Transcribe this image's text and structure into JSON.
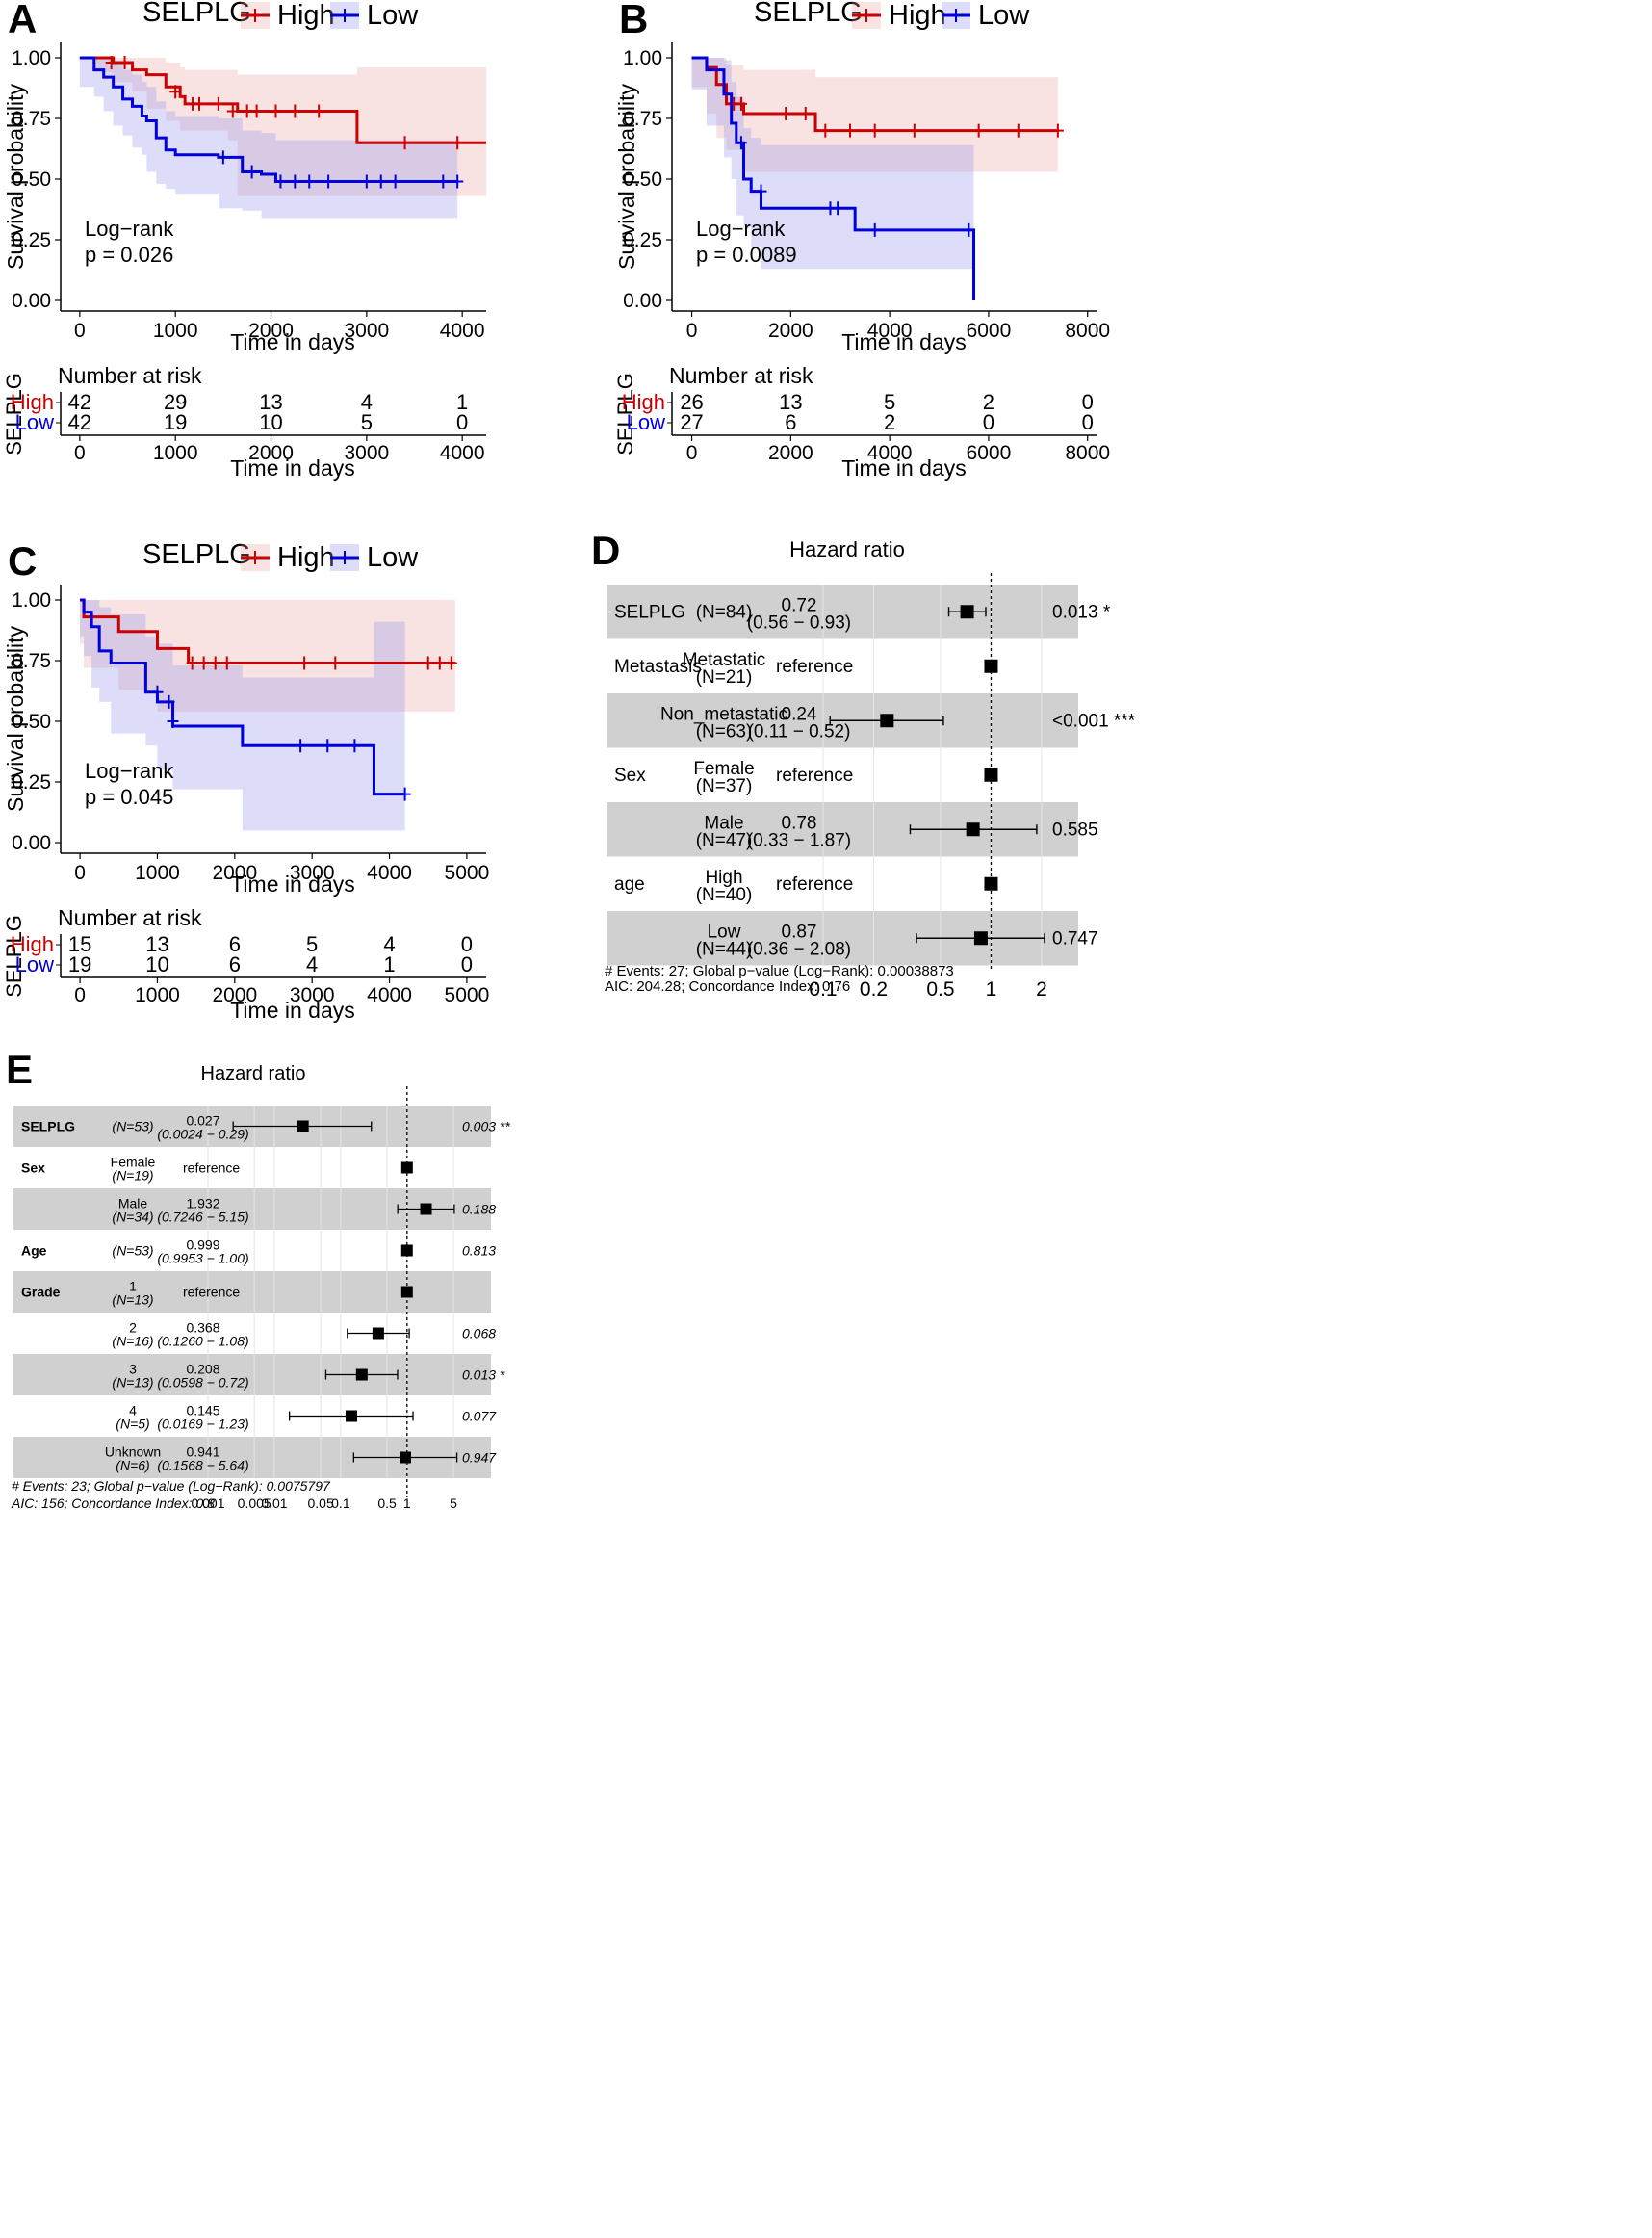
{
  "chart_data": [
    {
      "panel": "A",
      "type": "line",
      "legend_title": "SELPLG",
      "legend": [
        {
          "name": "High",
          "color": "#cc0000"
        },
        {
          "name": "Low",
          "color": "#0000dd"
        }
      ],
      "ylabel": "Survival probability",
      "xlabel": "Time in days",
      "xlim": [
        -200,
        4250
      ],
      "ylim": [
        0,
        1.0
      ],
      "xticks": [
        0,
        1000,
        2000,
        3000,
        4000
      ],
      "yticks": [
        "0.00",
        "0.25",
        "0.50",
        "0.75",
        "1.00"
      ],
      "annotation": [
        "Log−rank",
        "p = 0.026"
      ],
      "series": [
        {
          "name": "High",
          "x": [
            0,
            150,
            350,
            550,
            700,
            900,
            1050,
            1100,
            1550,
            1650,
            2900,
            4250
          ],
          "y": [
            1.0,
            1.0,
            0.98,
            0.95,
            0.93,
            0.88,
            0.84,
            0.81,
            0.81,
            0.78,
            0.65,
            0.65
          ],
          "lower": [
            1.0,
            1.0,
            0.94,
            0.9,
            0.86,
            0.79,
            0.74,
            0.7,
            0.7,
            0.66,
            0.43,
            0.43
          ],
          "upper": [
            1.0,
            1.0,
            1.0,
            1.0,
            1.0,
            0.98,
            0.96,
            0.95,
            0.95,
            0.93,
            0.96,
            0.96
          ],
          "censor": [
            [
              330,
              0.98
            ],
            [
              470,
              0.98
            ],
            [
              1000,
              0.86
            ],
            [
              1180,
              0.81
            ],
            [
              1250,
              0.81
            ],
            [
              1450,
              0.81
            ],
            [
              1600,
              0.78
            ],
            [
              1750,
              0.78
            ],
            [
              1850,
              0.78
            ],
            [
              2050,
              0.78
            ],
            [
              2250,
              0.78
            ],
            [
              2500,
              0.78
            ],
            [
              3400,
              0.65
            ],
            [
              3950,
              0.65
            ]
          ]
        },
        {
          "name": "Low",
          "x": [
            0,
            150,
            250,
            350,
            450,
            550,
            650,
            700,
            800,
            900,
            1000,
            1450,
            1700,
            1900,
            2050,
            3950
          ],
          "y": [
            1.0,
            0.95,
            0.92,
            0.88,
            0.83,
            0.8,
            0.76,
            0.74,
            0.67,
            0.62,
            0.6,
            0.59,
            0.53,
            0.52,
            0.49,
            0.49
          ],
          "lower": [
            1.0,
            0.88,
            0.84,
            0.78,
            0.72,
            0.68,
            0.63,
            0.6,
            0.53,
            0.48,
            0.46,
            0.44,
            0.38,
            0.37,
            0.34,
            0.34
          ],
          "upper": [
            1.0,
            1.0,
            1.0,
            0.98,
            0.95,
            0.93,
            0.9,
            0.88,
            0.82,
            0.78,
            0.76,
            0.75,
            0.7,
            0.69,
            0.66,
            0.66
          ],
          "censor": [
            [
              1500,
              0.59
            ],
            [
              1800,
              0.53
            ],
            [
              2100,
              0.49
            ],
            [
              2250,
              0.49
            ],
            [
              2400,
              0.49
            ],
            [
              2600,
              0.49
            ],
            [
              3000,
              0.49
            ],
            [
              3150,
              0.49
            ],
            [
              3300,
              0.49
            ],
            [
              3800,
              0.49
            ],
            [
              3950,
              0.49
            ]
          ]
        }
      ],
      "risk_table": {
        "title": "Number at risk",
        "ylabel": "SELPLG",
        "rows": [
          {
            "name": "High",
            "values": [
              42,
              29,
              13,
              4,
              1
            ]
          },
          {
            "name": "Low",
            "values": [
              42,
              19,
              10,
              5,
              0
            ]
          }
        ]
      }
    },
    {
      "panel": "B",
      "type": "line",
      "legend_title": "SELPLG",
      "legend": [
        {
          "name": "High",
          "color": "#cc0000"
        },
        {
          "name": "Low",
          "color": "#0000dd"
        }
      ],
      "ylabel": "Survival probability",
      "xlabel": "Time in days",
      "xlim": [
        -400,
        8200
      ],
      "ylim": [
        0,
        1.0
      ],
      "xticks": [
        0,
        2000,
        4000,
        6000,
        8000
      ],
      "yticks": [
        "0.00",
        "0.25",
        "0.50",
        "0.75",
        "1.00"
      ],
      "annotation": [
        "Log−rank",
        "p = 0.0089"
      ],
      "series": [
        {
          "name": "High",
          "x": [
            0,
            300,
            500,
            700,
            1050,
            2500,
            7400
          ],
          "y": [
            1.0,
            0.96,
            0.89,
            0.81,
            0.77,
            0.7,
            0.7
          ],
          "lower": [
            1.0,
            0.88,
            0.77,
            0.67,
            0.62,
            0.53,
            0.53
          ],
          "upper": [
            1.0,
            1.0,
            1.0,
            0.97,
            0.95,
            0.92,
            0.92
          ],
          "censor": [
            [
              850,
              0.81
            ],
            [
              1000,
              0.81
            ],
            [
              1900,
              0.77
            ],
            [
              2300,
              0.77
            ],
            [
              2700,
              0.7
            ],
            [
              3200,
              0.7
            ],
            [
              3700,
              0.7
            ],
            [
              4500,
              0.7
            ],
            [
              5800,
              0.7
            ],
            [
              6600,
              0.7
            ],
            [
              7400,
              0.7
            ]
          ]
        },
        {
          "name": "Low",
          "x": [
            0,
            300,
            650,
            800,
            900,
            1050,
            1200,
            1400,
            3300,
            5700,
            5700
          ],
          "y": [
            1.0,
            0.95,
            0.85,
            0.73,
            0.65,
            0.5,
            0.45,
            0.38,
            0.29,
            0.29,
            0.0
          ],
          "lower": [
            1.0,
            0.87,
            0.72,
            0.59,
            0.5,
            0.35,
            0.3,
            0.22,
            0.13,
            0.13,
            0.13
          ],
          "upper": [
            1.0,
            1.0,
            0.99,
            0.9,
            0.84,
            0.71,
            0.67,
            0.64,
            0.64,
            0.64,
            0.64
          ],
          "censor": [
            [
              1000,
              0.65
            ],
            [
              1400,
              0.45
            ],
            [
              2800,
              0.38
            ],
            [
              2950,
              0.38
            ],
            [
              3700,
              0.29
            ],
            [
              5600,
              0.29
            ]
          ]
        }
      ],
      "risk_table": {
        "title": "Number at risk",
        "ylabel": "SELPLG",
        "rows": [
          {
            "name": "High",
            "values": [
              26,
              13,
              5,
              2,
              0
            ]
          },
          {
            "name": "Low",
            "values": [
              27,
              6,
              2,
              0,
              0
            ]
          }
        ]
      }
    },
    {
      "panel": "C",
      "type": "line",
      "legend_title": "SELPLG",
      "legend": [
        {
          "name": "High",
          "color": "#cc0000"
        },
        {
          "name": "Low",
          "color": "#0000dd"
        }
      ],
      "ylabel": "Survival probability",
      "xlabel": "Time in days",
      "xlim": [
        -250,
        5250
      ],
      "ylim": [
        0,
        1.0
      ],
      "xticks": [
        0,
        1000,
        2000,
        3000,
        4000,
        5000
      ],
      "yticks": [
        "0.00",
        "0.25",
        "0.50",
        "0.75",
        "1.00"
      ],
      "annotation": [
        "Log−rank",
        "p = 0.045"
      ],
      "series": [
        {
          "name": "High",
          "x": [
            0,
            50,
            500,
            1000,
            1400,
            4850
          ],
          "y": [
            1.0,
            0.93,
            0.87,
            0.8,
            0.74,
            0.74
          ],
          "lower": [
            1.0,
            0.82,
            0.72,
            0.63,
            0.54,
            0.54
          ],
          "upper": [
            1.0,
            1.0,
            1.0,
            1.0,
            1.0,
            1.0
          ],
          "censor": [
            [
              1450,
              0.74
            ],
            [
              1600,
              0.74
            ],
            [
              1750,
              0.74
            ],
            [
              1900,
              0.74
            ],
            [
              2900,
              0.74
            ],
            [
              3300,
              0.74
            ],
            [
              4500,
              0.74
            ],
            [
              4650,
              0.74
            ],
            [
              4800,
              0.74
            ]
          ]
        },
        {
          "name": "Low",
          "x": [
            0,
            50,
            150,
            250,
            400,
            850,
            1000,
            1200,
            2100,
            3800,
            4200
          ],
          "y": [
            1.0,
            0.95,
            0.89,
            0.79,
            0.74,
            0.62,
            0.58,
            0.48,
            0.4,
            0.2,
            0.2
          ],
          "lower": [
            1.0,
            0.85,
            0.77,
            0.64,
            0.58,
            0.45,
            0.4,
            0.3,
            0.22,
            0.05,
            0.05
          ],
          "upper": [
            1.0,
            1.0,
            1.0,
            0.97,
            0.94,
            0.85,
            0.82,
            0.73,
            0.68,
            0.91,
            0.91
          ],
          "censor": [
            [
              1000,
              0.62
            ],
            [
              1150,
              0.58
            ],
            [
              1200,
              0.5
            ],
            [
              2850,
              0.4
            ],
            [
              3200,
              0.4
            ],
            [
              3550,
              0.4
            ],
            [
              4200,
              0.2
            ]
          ]
        }
      ],
      "risk_table": {
        "title": "Number at risk",
        "ylabel": "SELPLG",
        "rows": [
          {
            "name": "High",
            "values": [
              15,
              13,
              6,
              5,
              4,
              0
            ]
          },
          {
            "name": "Low",
            "values": [
              19,
              10,
              6,
              4,
              1,
              0
            ]
          }
        ]
      }
    },
    {
      "panel": "D",
      "type": "scatter",
      "title": "Hazard ratio",
      "xscale": "log",
      "xlim": [
        0.06,
        3.6
      ],
      "xticks": [
        "0.1",
        "0.2",
        "0.5",
        "1",
        "2"
      ],
      "rows": [
        {
          "var": "SELPLG",
          "level": "",
          "n": "(N=84)",
          "hr": "0.72",
          "ci": "(0.56 − 0.93)",
          "p": "0.013 *",
          "est": 0.72,
          "lo": 0.56,
          "hi": 0.93,
          "shade": true
        },
        {
          "var": "Metastasis",
          "level": "Metastatic",
          "n": "(N=21)",
          "hr": "reference",
          "ci": "",
          "p": "",
          "est": 1,
          "shade": false
        },
        {
          "var": "",
          "level": "Non_metastatic",
          "n": "(N=63)",
          "hr": "0.24",
          "ci": "(0.11 − 0.52)",
          "p": "<0.001 ***",
          "est": 0.24,
          "lo": 0.11,
          "hi": 0.52,
          "shade": true
        },
        {
          "var": "Sex",
          "level": "Female",
          "n": "(N=37)",
          "hr": "reference",
          "ci": "",
          "p": "",
          "est": 1,
          "shade": false
        },
        {
          "var": "",
          "level": "Male",
          "n": "(N=47)",
          "hr": "0.78",
          "ci": "(0.33 − 1.87)",
          "p": "0.585",
          "est": 0.78,
          "lo": 0.33,
          "hi": 1.87,
          "shade": true
        },
        {
          "var": "age",
          "level": "High",
          "n": "(N=40)",
          "hr": "reference",
          "ci": "",
          "p": "",
          "est": 1,
          "shade": false
        },
        {
          "var": "",
          "level": "Low",
          "n": "(N=44)",
          "hr": "0.87",
          "ci": "(0.36 − 2.08)",
          "p": "0.747",
          "est": 0.87,
          "lo": 0.36,
          "hi": 2.08,
          "shade": true
        }
      ],
      "footer": [
        "# Events: 27; Global p−value (Log−Rank): 0.00038873",
        "AIC: 204.28; Concordance Index: 0.76"
      ]
    },
    {
      "panel": "E",
      "type": "scatter",
      "title": "Hazard ratio",
      "xscale": "log",
      "xlim": [
        0.0005,
        9
      ],
      "xticks": [
        "0.001",
        "0.005",
        "0.01",
        "0.05",
        "0.1",
        "0.5",
        "1",
        "5"
      ],
      "rows": [
        {
          "var": "SELPLG",
          "level": "",
          "n": "(N=53)",
          "hr": "0.027",
          "ci": "(0.0024 − 0.29)",
          "p": "0.003 **",
          "est": 0.027,
          "lo": 0.0024,
          "hi": 0.29,
          "shade": true
        },
        {
          "var": "Sex",
          "level": "Female",
          "n": "(N=19)",
          "hr": "reference",
          "ci": "",
          "p": "",
          "est": 1,
          "shade": false
        },
        {
          "var": "",
          "level": "Male",
          "n": "(N=34)",
          "hr": "1.932",
          "ci": "(0.7246 − 5.15)",
          "p": "0.188",
          "est": 1.932,
          "lo": 0.7246,
          "hi": 5.15,
          "shade": true
        },
        {
          "var": "Age",
          "level": "",
          "n": "(N=53)",
          "hr": "0.999",
          "ci": "(0.9953 − 1.00)",
          "p": "0.813",
          "est": 0.999,
          "lo": 0.9953,
          "hi": 1.0,
          "shade": false
        },
        {
          "var": "Grade",
          "level": "1",
          "n": "(N=13)",
          "hr": "reference",
          "ci": "",
          "p": "",
          "est": 1,
          "shade": true
        },
        {
          "var": "",
          "level": "2",
          "n": "(N=16)",
          "hr": "0.368",
          "ci": "(0.1260 − 1.08)",
          "p": "0.068",
          "est": 0.368,
          "lo": 0.126,
          "hi": 1.08,
          "shade": false
        },
        {
          "var": "",
          "level": "3",
          "n": "(N=13)",
          "hr": "0.208",
          "ci": "(0.0598 − 0.72)",
          "p": "0.013 *",
          "est": 0.208,
          "lo": 0.0598,
          "hi": 0.72,
          "shade": true
        },
        {
          "var": "",
          "level": "4",
          "n": "(N=5)",
          "hr": "0.145",
          "ci": "(0.0169 − 1.23)",
          "p": "0.077",
          "est": 0.145,
          "lo": 0.0169,
          "hi": 1.23,
          "shade": false
        },
        {
          "var": "",
          "level": "Unknown",
          "n": "(N=6)",
          "hr": "0.941",
          "ci": "(0.1568 − 5.64)",
          "p": "0.947",
          "est": 0.941,
          "lo": 0.1568,
          "hi": 5.64,
          "shade": true
        }
      ],
      "footer": [
        "# Events: 23; Global p−value (Log−Rank): 0.0075797",
        "AIC: 156; Concordance Index: 0.8"
      ]
    }
  ]
}
